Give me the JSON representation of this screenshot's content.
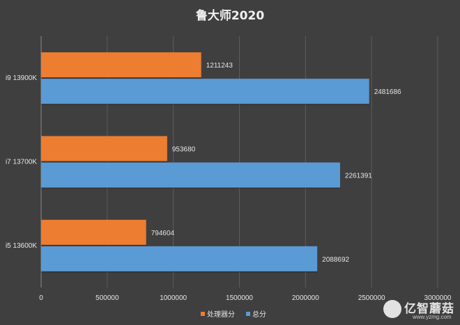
{
  "chart_data": {
    "type": "bar",
    "orientation": "horizontal",
    "title": "鲁大师2020",
    "categories": [
      "i9 13900K",
      "i7 13700K",
      "i5 13600K"
    ],
    "series": [
      {
        "name": "处理器分",
        "color": "#ed7d31",
        "values": [
          1211243,
          953680,
          794604
        ]
      },
      {
        "name": "总分",
        "color": "#5b9bd5",
        "values": [
          2481686,
          2261391,
          2088692
        ]
      }
    ],
    "xlim": [
      0,
      3000000
    ],
    "xticks": [
      "0",
      "500000",
      "1000000",
      "1500000",
      "2000000",
      "2500000",
      "3000000"
    ],
    "grid": true,
    "legend": "bottom"
  },
  "watermark": {
    "brand": "亿智蘑菇",
    "url": "www.yzmg.com"
  }
}
